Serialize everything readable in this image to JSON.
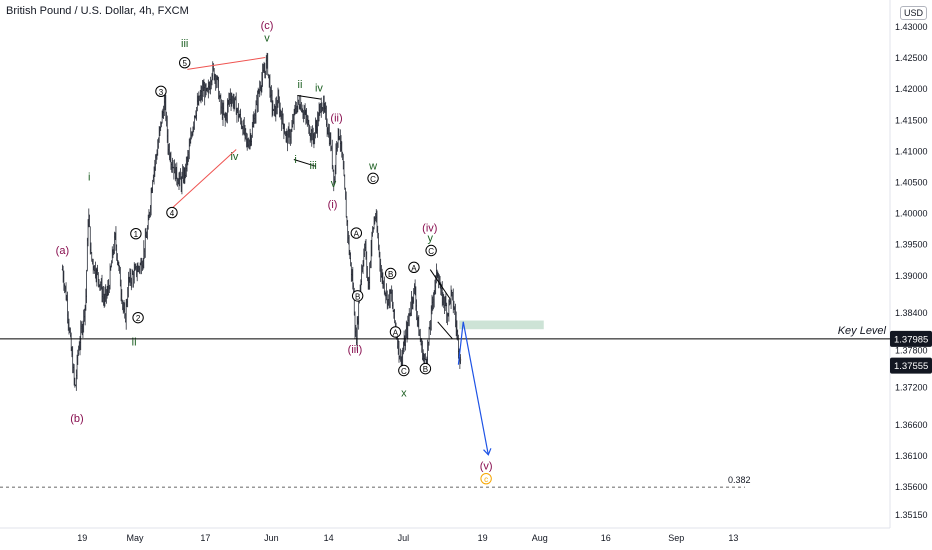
{
  "chart_title": "British Pound / U.S. Dollar, 4h, FXCM",
  "currency_button": "USD",
  "colors": {
    "candle": "#2a2e39",
    "wave_purple": "#880e4f",
    "wave_green": "#1b5e20",
    "wave_black": "#000000",
    "trendline_red": "#ef5350",
    "projection_blue": "#1e53e5",
    "zone_fill": "#c8e0d2",
    "fib_orange": "#f7a600",
    "key_level_line": "#000000"
  },
  "chart_data": {
    "type": "candlestick",
    "title": "British Pound / U.S. Dollar, 4h, FXCM",
    "symbol": "GBPUSD",
    "interval": "4h",
    "ylim": [
      1.3512,
      1.4321
    ],
    "y_ticks": [
      "1.43000",
      "1.42500",
      "1.42000",
      "1.41500",
      "1.41000",
      "1.40500",
      "1.40000",
      "1.39500",
      "1.39000",
      "1.38400",
      "1.37800",
      "1.37200",
      "1.36600",
      "1.36100",
      "1.35600",
      "1.35150"
    ],
    "x_ticks": [
      "19",
      "May",
      "17",
      "Jun",
      "14",
      "Jul",
      "19",
      "Aug",
      "16",
      "Sep",
      "13"
    ],
    "x_tick_days": [
      -12,
      0,
      16,
      31,
      44,
      61,
      79,
      92,
      107,
      123,
      136
    ],
    "price_path": [
      [
        -16.5,
        1.391
      ],
      [
        -15.5,
        1.386
      ],
      [
        -14.5,
        1.378
      ],
      [
        -13.6,
        1.3715
      ],
      [
        -13.0,
        1.3775
      ],
      [
        -12.0,
        1.382
      ],
      [
        -11.2,
        1.386
      ],
      [
        -10.6,
        1.4005
      ],
      [
        -10.0,
        1.393
      ],
      [
        -9.0,
        1.391
      ],
      [
        -8.0,
        1.389
      ],
      [
        -7.0,
        1.386
      ],
      [
        -6.0,
        1.388
      ],
      [
        -5.0,
        1.394
      ],
      [
        -4.5,
        1.396
      ],
      [
        -3.5,
        1.39
      ],
      [
        -2.3,
        1.3825
      ],
      [
        -1.5,
        1.389
      ],
      [
        -0.5,
        1.39
      ],
      [
        1.5,
        1.392
      ],
      [
        3.0,
        1.398
      ],
      [
        4.0,
        1.406
      ],
      [
        5.0,
        1.41
      ],
      [
        6.0,
        1.415
      ],
      [
        6.8,
        1.418
      ],
      [
        7.5,
        1.411
      ],
      [
        8.5,
        1.408
      ],
      [
        9.5,
        1.406
      ],
      [
        10.5,
        1.405
      ],
      [
        11.5,
        1.407
      ],
      [
        12.5,
        1.411
      ],
      [
        13.5,
        1.416
      ],
      [
        14.5,
        1.418
      ],
      [
        15.5,
        1.42
      ],
      [
        16.5,
        1.419
      ],
      [
        17.5,
        1.423
      ],
      [
        18.5,
        1.422
      ],
      [
        19.5,
        1.417
      ],
      [
        20.5,
        1.415
      ],
      [
        21.5,
        1.419
      ],
      [
        22.5,
        1.418
      ],
      [
        23.5,
        1.416
      ],
      [
        24.5,
        1.414
      ],
      [
        25.5,
        1.411
      ],
      [
        26.5,
        1.413
      ],
      [
        27.5,
        1.417
      ],
      [
        28.5,
        1.421
      ],
      [
        29.5,
        1.423
      ],
      [
        30.0,
        1.4245
      ],
      [
        30.8,
        1.419
      ],
      [
        31.5,
        1.416
      ],
      [
        32.5,
        1.418
      ],
      [
        33.5,
        1.415
      ],
      [
        34.5,
        1.412
      ],
      [
        35.5,
        1.413
      ],
      [
        36.5,
        1.417
      ],
      [
        37.5,
        1.418
      ],
      [
        38.5,
        1.416
      ],
      [
        39.5,
        1.414
      ],
      [
        40.5,
        1.412
      ],
      [
        41.5,
        1.415
      ],
      [
        42.5,
        1.418
      ],
      [
        43.5,
        1.415
      ],
      [
        44.5,
        1.411
      ],
      [
        45.3,
        1.405
      ],
      [
        45.8,
        1.412
      ],
      [
        46.5,
        1.413
      ],
      [
        47.3,
        1.407
      ],
      [
        48.0,
        1.4
      ],
      [
        48.8,
        1.393
      ],
      [
        49.6,
        1.388
      ],
      [
        50.2,
        1.379
      ],
      [
        50.8,
        1.385
      ],
      [
        51.5,
        1.391
      ],
      [
        52.3,
        1.395
      ],
      [
        53.0,
        1.388
      ],
      [
        53.8,
        1.396
      ],
      [
        54.6,
        1.4
      ],
      [
        55.3,
        1.395
      ],
      [
        56.0,
        1.39
      ],
      [
        56.8,
        1.388
      ],
      [
        57.5,
        1.386
      ],
      [
        58.2,
        1.387
      ],
      [
        58.9,
        1.383
      ],
      [
        59.6,
        1.38
      ],
      [
        60.4,
        1.376
      ],
      [
        61.2,
        1.379
      ],
      [
        62.0,
        1.382
      ],
      [
        62.8,
        1.386
      ],
      [
        63.6,
        1.388
      ],
      [
        64.3,
        1.382
      ],
      [
        65.0,
        1.379
      ],
      [
        65.8,
        1.376
      ],
      [
        66.5,
        1.378
      ],
      [
        67.2,
        1.383
      ],
      [
        68.0,
        1.388
      ],
      [
        68.8,
        1.391
      ],
      [
        69.5,
        1.387
      ],
      [
        70.3,
        1.386
      ],
      [
        71.0,
        1.384
      ],
      [
        71.8,
        1.387
      ],
      [
        72.5,
        1.385
      ],
      [
        73.3,
        1.38
      ],
      [
        74.0,
        1.376
      ]
    ],
    "annotations": [
      {
        "text": "(a)",
        "day": -16.5,
        "price": 1.3935,
        "color": "wave_purple"
      },
      {
        "text": "(b)",
        "day": -13.2,
        "price": 1.3665,
        "color": "wave_purple"
      },
      {
        "text": "ii",
        "day": -0.2,
        "price": 1.3788,
        "color": "wave_green"
      },
      {
        "text": "i",
        "day": -10.4,
        "price": 1.4053,
        "color": "wave_green"
      },
      {
        "text": "1",
        "day": 0.2,
        "price": 1.3962,
        "color": "wave_black",
        "circled": true
      },
      {
        "text": "2",
        "day": 0.7,
        "price": 1.3827,
        "color": "wave_black",
        "circled": true
      },
      {
        "text": "3",
        "day": 5.9,
        "price": 1.4191,
        "color": "wave_black",
        "circled": true
      },
      {
        "text": "4",
        "day": 8.4,
        "price": 1.3996,
        "color": "wave_black",
        "circled": true
      },
      {
        "text": "5",
        "day": 11.3,
        "price": 1.4237,
        "color": "wave_black",
        "circled": true
      },
      {
        "text": "iii",
        "day": 11.3,
        "price": 1.4268,
        "color": "wave_green"
      },
      {
        "text": "iv",
        "day": 22.6,
        "price": 1.4086,
        "color": "wave_green"
      },
      {
        "text": "(c)",
        "day": 30.0,
        "price": 1.4297,
        "color": "wave_purple"
      },
      {
        "text": "v",
        "day": 30.0,
        "price": 1.4277,
        "color": "wave_green"
      },
      {
        "text": "i",
        "day": 36.5,
        "price": 1.4081,
        "color": "wave_green"
      },
      {
        "text": "ii",
        "day": 37.5,
        "price": 1.4202,
        "color": "wave_green"
      },
      {
        "text": "iii",
        "day": 40.5,
        "price": 1.4072,
        "color": "wave_green"
      },
      {
        "text": "iv",
        "day": 41.8,
        "price": 1.4196,
        "color": "wave_green"
      },
      {
        "text": "(ii)",
        "day": 45.8,
        "price": 1.4148,
        "color": "wave_purple"
      },
      {
        "text": "v",
        "day": 45.1,
        "price": 1.4043,
        "color": "wave_green"
      },
      {
        "text": "(i)",
        "day": 44.9,
        "price": 1.4009,
        "color": "wave_purple"
      },
      {
        "text": "(iii)",
        "day": 50.0,
        "price": 1.3776,
        "color": "wave_purple"
      },
      {
        "text": "A",
        "day": 50.3,
        "price": 1.3963,
        "color": "wave_black",
        "circled": true
      },
      {
        "text": "B",
        "day": 50.6,
        "price": 1.3862,
        "color": "wave_black",
        "circled": true
      },
      {
        "text": "w",
        "day": 54.1,
        "price": 1.4071,
        "color": "wave_green"
      },
      {
        "text": "C",
        "day": 54.1,
        "price": 1.4051,
        "color": "wave_black",
        "circled": true
      },
      {
        "text": "B",
        "day": 58.1,
        "price": 1.3898,
        "color": "wave_black",
        "circled": true
      },
      {
        "text": "A",
        "day": 59.2,
        "price": 1.3804,
        "color": "wave_black",
        "circled": true
      },
      {
        "text": "A",
        "day": 63.4,
        "price": 1.3908,
        "color": "wave_black",
        "circled": true
      },
      {
        "text": "C",
        "day": 61.1,
        "price": 1.3742,
        "color": "wave_black",
        "circled": true
      },
      {
        "text": "x",
        "day": 61.1,
        "price": 1.3706,
        "color": "wave_green"
      },
      {
        "text": "B",
        "day": 66.0,
        "price": 1.3745,
        "color": "wave_black",
        "circled": true
      },
      {
        "text": "(iv)",
        "day": 67.0,
        "price": 1.3971,
        "color": "wave_purple"
      },
      {
        "text": "y",
        "day": 67.1,
        "price": 1.3955,
        "color": "wave_green"
      },
      {
        "text": "C",
        "day": 67.3,
        "price": 1.3935,
        "color": "wave_black",
        "circled": true
      },
      {
        "text": "(v)",
        "day": 79.8,
        "price": 1.3588,
        "color": "wave_purple"
      },
      {
        "text": "c",
        "day": 79.8,
        "price": 1.3568,
        "color": "fib_orange",
        "circled": true
      }
    ],
    "trendlines": [
      {
        "from": [
          8.3,
          1.4008
        ],
        "to": [
          23.0,
          1.4103
        ],
        "color": "trendline_red"
      },
      {
        "from": [
          11.9,
          1.4232
        ],
        "to": [
          29.6,
          1.4251
        ],
        "color": "trendline_red"
      },
      {
        "from": [
          36.1,
          1.4087
        ],
        "to": [
          41.1,
          1.4076
        ],
        "color": "wave_black"
      },
      {
        "from": [
          36.9,
          1.419
        ],
        "to": [
          42.3,
          1.4184
        ],
        "color": "wave_black"
      },
      {
        "from": [
          67.1,
          1.391
        ],
        "to": [
          71.6,
          1.3863
        ],
        "color": "wave_black"
      },
      {
        "from": [
          68.8,
          1.3826
        ],
        "to": [
          72.1,
          1.3799
        ],
        "color": "wave_black"
      }
    ],
    "projection": {
      "points": [
        [
          73.5,
          1.3757
        ],
        [
          74.6,
          1.3826
        ],
        [
          80.3,
          1.3612
        ]
      ],
      "color": "projection_blue"
    },
    "target_zone": {
      "from_day": 73.7,
      "to_day": 92.9,
      "top": 1.3828,
      "bottom": 1.3814,
      "color": "zone_fill"
    },
    "key_level": {
      "label": "Key Level",
      "value": 1.37985,
      "value_text": "1.37985"
    },
    "current_price": {
      "value": 1.37555,
      "value_text": "1.37555"
    },
    "fib_level": {
      "ratio_text": "0.382",
      "value": 1.356
    }
  }
}
